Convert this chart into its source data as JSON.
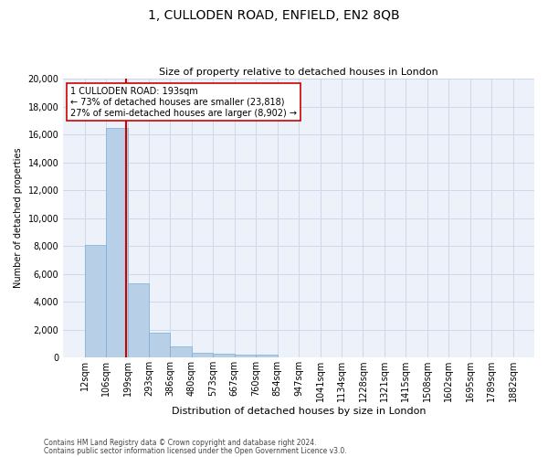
{
  "title": "1, CULLODEN ROAD, ENFIELD, EN2 8QB",
  "subtitle": "Size of property relative to detached houses in London",
  "xlabel": "Distribution of detached houses by size in London",
  "ylabel": "Number of detached properties",
  "property_label": "1 CULLODEN ROAD: 193sqm",
  "annotation_line1": "← 73% of detached houses are smaller (23,818)",
  "annotation_line2": "27% of semi-detached houses are larger (8,902) →",
  "footer_line1": "Contains HM Land Registry data © Crown copyright and database right 2024.",
  "footer_line2": "Contains public sector information licensed under the Open Government Licence v3.0.",
  "bin_labels": [
    "12sqm",
    "106sqm",
    "199sqm",
    "293sqm",
    "386sqm",
    "480sqm",
    "573sqm",
    "667sqm",
    "760sqm",
    "854sqm",
    "947sqm",
    "1041sqm",
    "1134sqm",
    "1228sqm",
    "1321sqm",
    "1415sqm",
    "1508sqm",
    "1602sqm",
    "1695sqm",
    "1789sqm",
    "1882sqm"
  ],
  "bar_values": [
    8100,
    16500,
    5350,
    1750,
    800,
    350,
    280,
    220,
    200,
    0,
    0,
    0,
    0,
    0,
    0,
    0,
    0,
    0,
    0,
    0
  ],
  "bar_color": "#b8cfe8",
  "bar_edge_color": "#7aadd4",
  "vline_color": "#cc0000",
  "grid_color": "#cdd8ea",
  "background_color": "#edf2fa",
  "ylim": [
    0,
    20000
  ],
  "yticks": [
    0,
    2000,
    4000,
    6000,
    8000,
    10000,
    12000,
    14000,
    16000,
    18000,
    20000
  ],
  "title_fontsize": 10,
  "subtitle_fontsize": 8,
  "xlabel_fontsize": 8,
  "ylabel_fontsize": 7,
  "tick_fontsize": 7,
  "annot_fontsize": 7,
  "footer_fontsize": 5.5
}
